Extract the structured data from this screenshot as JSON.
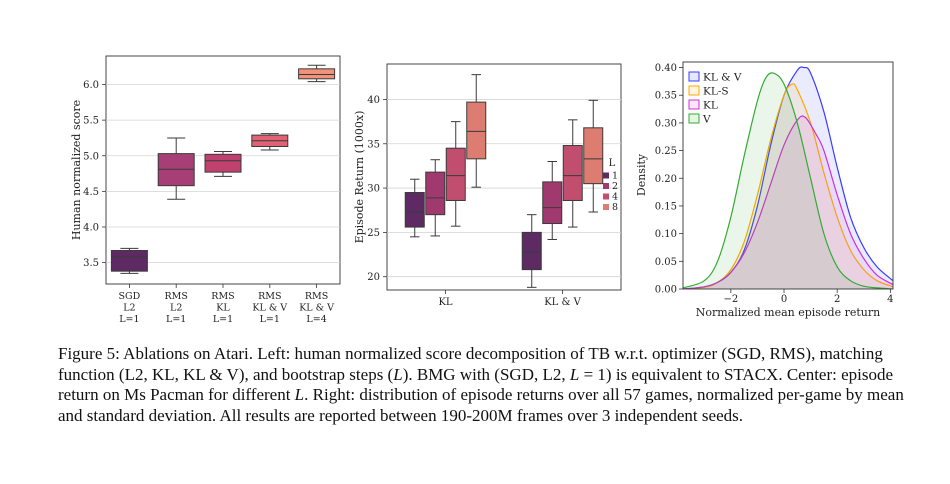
{
  "chart_data": [
    {
      "type": "box",
      "ylabel": "Human normalized score",
      "ylim": [
        3.2,
        6.4
      ],
      "yticks": [
        3.5,
        4.0,
        4.5,
        5.0,
        5.5,
        6.0
      ],
      "ytick_labels": [
        "3.5",
        "4.0",
        "4.5",
        "5.0",
        "5.5",
        "6.0"
      ],
      "categories": [
        {
          "lines": [
            "SGD",
            "L2",
            "L=1"
          ]
        },
        {
          "lines": [
            "RMS",
            "L2",
            "L=1"
          ]
        },
        {
          "lines": [
            "RMS",
            "KL",
            "L=1"
          ]
        },
        {
          "lines": [
            "RMS",
            "KL & V",
            "L=1"
          ]
        },
        {
          "lines": [
            "RMS",
            "KL & V",
            "L=4"
          ]
        }
      ],
      "boxes": [
        {
          "min": 3.35,
          "q1": 3.38,
          "median": 3.58,
          "q3": 3.67,
          "max": 3.7,
          "color": "#5e2a63"
        },
        {
          "min": 4.39,
          "q1": 4.58,
          "median": 4.81,
          "q3": 5.03,
          "max": 5.25,
          "color": "#a73e75"
        },
        {
          "min": 4.71,
          "q1": 4.77,
          "median": 4.93,
          "q3": 5.02,
          "max": 5.06,
          "color": "#c0416e"
        },
        {
          "min": 5.08,
          "q1": 5.13,
          "median": 5.21,
          "q3": 5.29,
          "max": 5.31,
          "color": "#e06274"
        },
        {
          "min": 6.04,
          "q1": 6.08,
          "median": 6.14,
          "q3": 6.22,
          "max": 6.27,
          "color": "#f2927a"
        }
      ]
    },
    {
      "type": "box",
      "ylabel": "Episode Return (1000x)",
      "ylim": [
        18.5,
        44
      ],
      "yticks": [
        20,
        25,
        30,
        35,
        40
      ],
      "ytick_labels": [
        "20",
        "25",
        "30",
        "35",
        "40"
      ],
      "groups": [
        "KL",
        "KL & V"
      ],
      "legend_title": "L",
      "legend_position": "right",
      "series": [
        {
          "name": "1",
          "color": "#5e2a63",
          "boxes": [
            {
              "min": 24.5,
              "q1": 25.6,
              "median": 27.3,
              "q3": 29.5,
              "max": 31.0
            },
            {
              "min": 18.8,
              "q1": 20.8,
              "median": 22.8,
              "q3": 25.0,
              "max": 27.0
            }
          ]
        },
        {
          "name": "2",
          "color": "#a03a6e",
          "boxes": [
            {
              "min": 24.6,
              "q1": 27.0,
              "median": 28.9,
              "q3": 31.8,
              "max": 33.2
            },
            {
              "min": 24.2,
              "q1": 26.0,
              "median": 27.8,
              "q3": 30.7,
              "max": 33.0
            }
          ]
        },
        {
          "name": "4",
          "color": "#c14e6e",
          "boxes": [
            {
              "min": 25.7,
              "q1": 28.6,
              "median": 31.4,
              "q3": 34.5,
              "max": 37.5
            },
            {
              "min": 25.6,
              "q1": 28.6,
              "median": 31.4,
              "q3": 34.8,
              "max": 37.7
            }
          ]
        },
        {
          "name": "8",
          "color": "#dd7d71",
          "boxes": [
            {
              "min": 30.1,
              "q1": 33.3,
              "median": 36.4,
              "q3": 39.7,
              "max": 42.8
            },
            {
              "min": 27.3,
              "q1": 30.5,
              "median": 33.3,
              "q3": 36.8,
              "max": 39.9
            }
          ]
        }
      ]
    },
    {
      "type": "density",
      "xlabel": "Normalized mean episode return",
      "ylabel": "Density",
      "xlim": [
        -3.8,
        4.1
      ],
      "ylim": [
        0,
        0.41
      ],
      "xticks": [
        -2,
        0,
        2,
        4
      ],
      "xtick_labels": [
        "−2",
        "0",
        "2",
        "4"
      ],
      "yticks": [
        0.0,
        0.05,
        0.1,
        0.15,
        0.2,
        0.25,
        0.3,
        0.35,
        0.4
      ],
      "ytick_labels": [
        "0.00",
        "0.05",
        "0.10",
        "0.15",
        "0.20",
        "0.25",
        "0.30",
        "0.35",
        "0.40"
      ],
      "legend_position": "top-left",
      "series": [
        {
          "name": "KL & V",
          "color": "#3b3bff",
          "x": [
            -3.8,
            -3,
            -2.5,
            -2,
            -1.5,
            -1,
            -0.5,
            0,
            0.5,
            0.75,
            1,
            1.5,
            2,
            2.5,
            3,
            3.5,
            4.1
          ],
          "y": [
            0.0,
            0.004,
            0.012,
            0.03,
            0.07,
            0.15,
            0.26,
            0.35,
            0.395,
            0.4,
            0.39,
            0.32,
            0.22,
            0.13,
            0.075,
            0.04,
            0.015
          ]
        },
        {
          "name": "KL-S",
          "color": "#ffaa00",
          "x": [
            -3.8,
            -3,
            -2.5,
            -2,
            -1.5,
            -1,
            -0.5,
            0,
            0.3,
            0.5,
            1,
            1.5,
            2,
            2.5,
            3,
            3.5,
            4.1
          ],
          "y": [
            0.0,
            0.003,
            0.012,
            0.035,
            0.085,
            0.17,
            0.27,
            0.35,
            0.37,
            0.36,
            0.3,
            0.21,
            0.13,
            0.07,
            0.035,
            0.015,
            0.004
          ]
        },
        {
          "name": "KL",
          "color": "#cc33cc",
          "x": [
            -3.8,
            -3,
            -2.5,
            -2,
            -1.5,
            -1,
            -0.5,
            0,
            0.5,
            0.8,
            1.2,
            1.5,
            2,
            2.5,
            3,
            3.5,
            4.1
          ],
          "y": [
            0.0,
            0.004,
            0.012,
            0.03,
            0.065,
            0.12,
            0.19,
            0.26,
            0.305,
            0.31,
            0.28,
            0.25,
            0.17,
            0.1,
            0.055,
            0.025,
            0.008
          ]
        },
        {
          "name": "V",
          "color": "#33aa33",
          "x": [
            -3.8,
            -3,
            -2.5,
            -2,
            -1.5,
            -1,
            -0.7,
            -0.4,
            0,
            0.5,
            1,
            1.5,
            2,
            2.5,
            3,
            3.5,
            4.1
          ],
          "y": [
            0.002,
            0.015,
            0.05,
            0.13,
            0.24,
            0.34,
            0.38,
            0.39,
            0.37,
            0.3,
            0.2,
            0.1,
            0.04,
            0.015,
            0.005,
            0.002,
            0.0
          ]
        }
      ]
    }
  ],
  "caption": {
    "prefix": "Figure 5: Ablations on Atari. Left: human normalized score decomposition of TB w.r.t. optimizer (SGD, RMS), matching function (L2, KL, KL & V), and bootstrap steps (",
    "l1": "L",
    "mid1": "). BMG with (SGD, L2, ",
    "l2": "L",
    "mid2": " = 1) is equivalent to STACX. Center: episode return on Ms Pacman for different ",
    "l3": "L",
    "suffix": ". Right: distribution of episode returns over all 57 games, normalized per-game by mean and standard deviation. All results are reported between 190-200M frames over 3 independent seeds."
  }
}
